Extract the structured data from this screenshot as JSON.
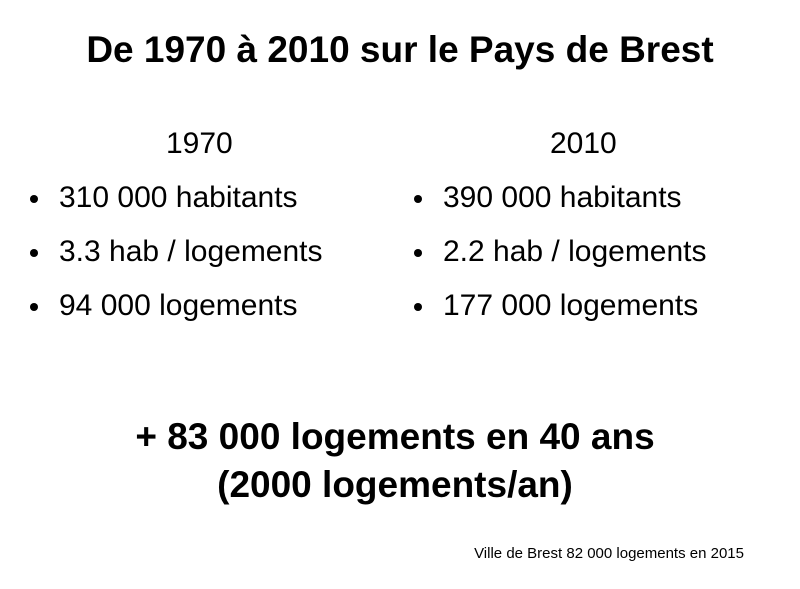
{
  "slide": {
    "title": "De 1970 à 2010 sur le Pays de Brest",
    "columns": [
      {
        "year": "1970",
        "items": [
          "310 000 habitants",
          "3.3 hab / logements",
          "94 000 logements"
        ]
      },
      {
        "year": "2010",
        "items": [
          "390 000 habitants",
          "2.2 hab / logements",
          "177 000 logements"
        ]
      }
    ],
    "summary": {
      "line1": "+ 83 000 logements en 40 ans",
      "line2": "(2000 logements/an)"
    },
    "source_note": "Ville de Brest 82 000 logements en 2015"
  }
}
